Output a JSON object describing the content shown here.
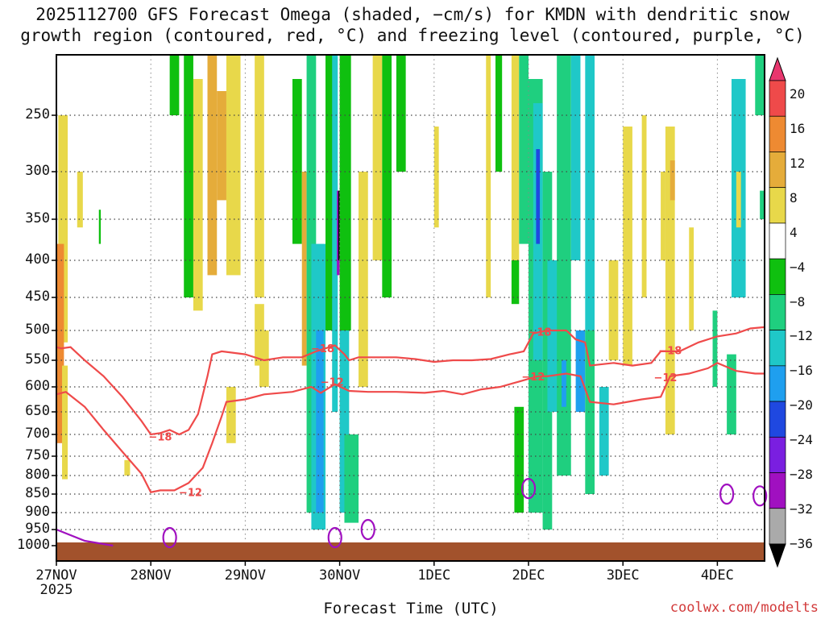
{
  "chart_data": {
    "type": "heatmap",
    "title_line1": "2025112700 GFS Forecast Omega (shaded, −cm/s) for KMDN with dendritic snow",
    "title_line2": "growth region (contoured, red, °C) and freezing level (contoured, purple, °C)",
    "xlabel": "Forecast Time (UTC)",
    "ylabel": "Pressure (hPa)",
    "credit": "coolwx.com/modelts",
    "x_ticks": [
      {
        "label": "27NOV",
        "sub": "2025",
        "day": 0
      },
      {
        "label": "28NOV",
        "sub": "",
        "day": 1
      },
      {
        "label": "29NOV",
        "sub": "",
        "day": 2
      },
      {
        "label": "30NOV",
        "sub": "",
        "day": 3
      },
      {
        "label": "1DEC",
        "sub": "",
        "day": 4
      },
      {
        "label": "2DEC",
        "sub": "",
        "day": 5
      },
      {
        "label": "3DEC",
        "sub": "",
        "day": 6
      },
      {
        "label": "4DEC",
        "sub": "",
        "day": 7
      }
    ],
    "x_range_days": [
      0,
      7.5
    ],
    "y_ticks": [
      250,
      300,
      350,
      400,
      450,
      500,
      550,
      600,
      650,
      700,
      750,
      800,
      850,
      900,
      950,
      1000
    ],
    "y_range_hpa": [
      200,
      1020
    ],
    "colorbar_levels": [
      "20",
      "16",
      "12",
      "8",
      "4",
      "−4",
      "−8",
      "−12",
      "−16",
      "−20",
      "−24",
      "−28",
      "−32",
      "−36"
    ],
    "colorbar_colors": [
      "#e8366e",
      "#ef4a4a",
      "#ee8a32",
      "#e5ac3a",
      "#e8d84a",
      "#ffffff",
      "#0fc00f",
      "#1fcf7f",
      "#1fc8c8",
      "#1f9fef",
      "#1f48e0",
      "#7a1fe0",
      "#a010c0",
      "#aaaaaa",
      "#000000"
    ],
    "series": [
      {
        "name": "-18C dendritic (red)",
        "color": "#ef4a4a",
        "points": [
          [
            0,
            528
          ],
          [
            0.05,
            530
          ],
          [
            0.15,
            528
          ],
          [
            0.3,
            550
          ],
          [
            0.5,
            580
          ],
          [
            0.7,
            620
          ],
          [
            0.9,
            670
          ],
          [
            1.0,
            700
          ],
          [
            1.1,
            697
          ],
          [
            1.2,
            690
          ],
          [
            1.3,
            700
          ],
          [
            1.4,
            690
          ],
          [
            1.5,
            655
          ],
          [
            1.6,
            580
          ],
          [
            1.65,
            540
          ],
          [
            1.75,
            535
          ],
          [
            2.0,
            540
          ],
          [
            2.2,
            550
          ],
          [
            2.4,
            545
          ],
          [
            2.6,
            545
          ],
          [
            2.75,
            535
          ],
          [
            2.85,
            530
          ],
          [
            2.95,
            525
          ],
          [
            3.05,
            540
          ],
          [
            3.1,
            550
          ],
          [
            3.2,
            545
          ],
          [
            3.4,
            545
          ],
          [
            3.6,
            545
          ],
          [
            3.8,
            548
          ],
          [
            4.0,
            553
          ],
          [
            4.2,
            550
          ],
          [
            4.4,
            550
          ],
          [
            4.6,
            548
          ],
          [
            4.8,
            540
          ],
          [
            4.95,
            535
          ],
          [
            5.0,
            520
          ],
          [
            5.05,
            505
          ],
          [
            5.2,
            500
          ],
          [
            5.4,
            500
          ],
          [
            5.5,
            515
          ],
          [
            5.6,
            520
          ],
          [
            5.65,
            560
          ],
          [
            5.9,
            555
          ],
          [
            6.1,
            560
          ],
          [
            6.3,
            555
          ],
          [
            6.4,
            535
          ],
          [
            6.6,
            535
          ],
          [
            6.8,
            520
          ],
          [
            7.0,
            510
          ],
          [
            7.2,
            505
          ],
          [
            7.35,
            497
          ],
          [
            7.5,
            495
          ]
        ],
        "labels": [
          {
            "text": "−18",
            "day": 1.1,
            "p": 705
          },
          {
            "text": "−18",
            "day": 2.82,
            "p": 530
          },
          {
            "text": "−18",
            "day": 5.12,
            "p": 502
          },
          {
            "text": "−18",
            "day": 6.5,
            "p": 533
          }
        ]
      },
      {
        "name": "-12C dendritic (red)",
        "color": "#ef4a4a",
        "points": [
          [
            0,
            615
          ],
          [
            0.1,
            610
          ],
          [
            0.3,
            640
          ],
          [
            0.5,
            690
          ],
          [
            0.7,
            740
          ],
          [
            0.9,
            795
          ],
          [
            1.0,
            845
          ],
          [
            1.1,
            840
          ],
          [
            1.25,
            840
          ],
          [
            1.4,
            820
          ],
          [
            1.55,
            780
          ],
          [
            1.65,
            720
          ],
          [
            1.75,
            660
          ],
          [
            1.8,
            630
          ],
          [
            2.0,
            625
          ],
          [
            2.2,
            615
          ],
          [
            2.5,
            610
          ],
          [
            2.7,
            600
          ],
          [
            2.8,
            612
          ],
          [
            2.95,
            595
          ],
          [
            3.1,
            608
          ],
          [
            3.3,
            610
          ],
          [
            3.6,
            610
          ],
          [
            3.9,
            612
          ],
          [
            4.1,
            608
          ],
          [
            4.3,
            615
          ],
          [
            4.5,
            605
          ],
          [
            4.7,
            600
          ],
          [
            4.9,
            590
          ],
          [
            5.0,
            585
          ],
          [
            5.1,
            580
          ],
          [
            5.2,
            580
          ],
          [
            5.4,
            575
          ],
          [
            5.55,
            580
          ],
          [
            5.65,
            630
          ],
          [
            5.9,
            635
          ],
          [
            6.2,
            625
          ],
          [
            6.4,
            620
          ],
          [
            6.5,
            580
          ],
          [
            6.7,
            575
          ],
          [
            6.9,
            565
          ],
          [
            7.0,
            555
          ],
          [
            7.2,
            570
          ],
          [
            7.4,
            575
          ],
          [
            7.5,
            575
          ]
        ],
        "labels": [
          {
            "text": "−12",
            "day": 1.42,
            "p": 845
          },
          {
            "text": "−12",
            "day": 2.92,
            "p": 590
          },
          {
            "text": "−12",
            "day": 5.05,
            "p": 580
          },
          {
            "text": "−12",
            "day": 6.45,
            "p": 582
          }
        ]
      },
      {
        "name": "0C freezing level (purple)",
        "color": "#a010c0",
        "points": [
          [
            0,
            950
          ],
          [
            0.3,
            985
          ],
          [
            0.6,
            1000
          ]
        ],
        "labels": []
      }
    ],
    "omega_cells": [
      {
        "d0": 0.02,
        "d1": 0.12,
        "p0": 250,
        "p1": 520,
        "v": 6
      },
      {
        "d0": 0.0,
        "d1": 0.08,
        "p0": 380,
        "p1": 720,
        "v": 12
      },
      {
        "d0": 0.06,
        "d1": 0.12,
        "p0": 560,
        "p1": 810,
        "v": 5
      },
      {
        "d0": 0.22,
        "d1": 0.28,
        "p0": 300,
        "p1": 360,
        "v": 5
      },
      {
        "d0": 0.45,
        "d1": 0.47,
        "p0": 340,
        "p1": 380,
        "v": -6
      },
      {
        "d0": 0.72,
        "d1": 0.78,
        "p0": 760,
        "p1": 800,
        "v": 5
      },
      {
        "d0": 1.2,
        "d1": 1.3,
        "p0": 200,
        "p1": 250,
        "v": -6
      },
      {
        "d0": 1.35,
        "d1": 1.45,
        "p0": 200,
        "p1": 450,
        "v": -6
      },
      {
        "d0": 1.45,
        "d1": 1.55,
        "p0": 220,
        "p1": 470,
        "v": 6
      },
      {
        "d0": 1.6,
        "d1": 1.7,
        "p0": 200,
        "p1": 420,
        "v": 8
      },
      {
        "d0": 1.7,
        "d1": 1.8,
        "p0": 230,
        "p1": 330,
        "v": 10
      },
      {
        "d0": 1.8,
        "d1": 1.95,
        "p0": 200,
        "p1": 420,
        "v": 5
      },
      {
        "d0": 2.1,
        "d1": 2.2,
        "p0": 200,
        "p1": 450,
        "v": 6
      },
      {
        "d0": 2.1,
        "d1": 2.2,
        "p0": 460,
        "p1": 560,
        "v": 5
      },
      {
        "d0": 1.8,
        "d1": 1.9,
        "p0": 600,
        "p1": 720,
        "v": 4
      },
      {
        "d0": 2.15,
        "d1": 2.25,
        "p0": 500,
        "p1": 600,
        "v": 5
      },
      {
        "d0": 2.5,
        "d1": 2.6,
        "p0": 220,
        "p1": 380,
        "v": -6
      },
      {
        "d0": 2.6,
        "d1": 2.65,
        "p0": 300,
        "p1": 560,
        "v": 8
      },
      {
        "d0": 2.65,
        "d1": 2.75,
        "p0": 200,
        "p1": 900,
        "v": -8
      },
      {
        "d0": 2.7,
        "d1": 2.85,
        "p0": 380,
        "p1": 950,
        "v": -12
      },
      {
        "d0": 2.75,
        "d1": 2.83,
        "p0": 500,
        "p1": 900,
        "v": -16
      },
      {
        "d0": 2.85,
        "d1": 2.95,
        "p0": 200,
        "p1": 500,
        "v": -6
      },
      {
        "d0": 2.92,
        "d1": 2.98,
        "p0": 200,
        "p1": 650,
        "v": -12
      },
      {
        "d0": 2.97,
        "d1": 3.0,
        "p0": 320,
        "p1": 420,
        "v": -28
      },
      {
        "d0": 2.985,
        "d1": 3.0,
        "p0": 320,
        "p1": 400,
        "v": -36
      },
      {
        "d0": 3.0,
        "d1": 3.12,
        "p0": 200,
        "p1": 500,
        "v": -6
      },
      {
        "d0": 3.0,
        "d1": 3.1,
        "p0": 500,
        "p1": 900,
        "v": -12
      },
      {
        "d0": 3.05,
        "d1": 3.2,
        "p0": 700,
        "p1": 930,
        "v": -8
      },
      {
        "d0": 3.2,
        "d1": 3.3,
        "p0": 300,
        "p1": 600,
        "v": 5
      },
      {
        "d0": 3.35,
        "d1": 3.45,
        "p0": 200,
        "p1": 400,
        "v": 6
      },
      {
        "d0": 3.45,
        "d1": 3.55,
        "p0": 200,
        "p1": 450,
        "v": -6
      },
      {
        "d0": 3.6,
        "d1": 3.7,
        "p0": 200,
        "p1": 300,
        "v": -6
      },
      {
        "d0": 4.0,
        "d1": 4.05,
        "p0": 260,
        "p1": 360,
        "v": 5
      },
      {
        "d0": 4.55,
        "d1": 4.6,
        "p0": 200,
        "p1": 450,
        "v": 5
      },
      {
        "d0": 4.65,
        "d1": 4.72,
        "p0": 200,
        "p1": 300,
        "v": -6
      },
      {
        "d0": 4.82,
        "d1": 4.9,
        "p0": 200,
        "p1": 400,
        "v": 5
      },
      {
        "d0": 4.82,
        "d1": 4.9,
        "p0": 400,
        "p1": 460,
        "v": -6
      },
      {
        "d0": 4.85,
        "d1": 4.95,
        "p0": 640,
        "p1": 900,
        "v": -6
      },
      {
        "d0": 4.9,
        "d1": 5.0,
        "p0": 200,
        "p1": 380,
        "v": -8
      },
      {
        "d0": 5.0,
        "d1": 5.15,
        "p0": 220,
        "p1": 900,
        "v": -8
      },
      {
        "d0": 5.05,
        "d1": 5.15,
        "p0": 240,
        "p1": 550,
        "v": -12
      },
      {
        "d0": 5.08,
        "d1": 5.12,
        "p0": 280,
        "p1": 380,
        "v": -20
      },
      {
        "d0": 5.15,
        "d1": 5.25,
        "p0": 300,
        "p1": 950,
        "v": -8
      },
      {
        "d0": 5.2,
        "d1": 5.35,
        "p0": 400,
        "p1": 650,
        "v": -12
      },
      {
        "d0": 5.3,
        "d1": 5.45,
        "p0": 200,
        "p1": 800,
        "v": -8
      },
      {
        "d0": 5.35,
        "d1": 5.4,
        "p0": 550,
        "p1": 640,
        "v": -16
      },
      {
        "d0": 5.45,
        "d1": 5.55,
        "p0": 200,
        "p1": 400,
        "v": -12
      },
      {
        "d0": 5.5,
        "d1": 5.6,
        "p0": 500,
        "p1": 650,
        "v": -16
      },
      {
        "d0": 5.6,
        "d1": 5.7,
        "p0": 200,
        "p1": 500,
        "v": -12
      },
      {
        "d0": 5.6,
        "d1": 5.7,
        "p0": 500,
        "p1": 850,
        "v": -8
      },
      {
        "d0": 5.75,
        "d1": 5.85,
        "p0": 600,
        "p1": 800,
        "v": -12
      },
      {
        "d0": 5.85,
        "d1": 5.95,
        "p0": 400,
        "p1": 550,
        "v": 5
      },
      {
        "d0": 6.0,
        "d1": 6.1,
        "p0": 260,
        "p1": 560,
        "v": 5
      },
      {
        "d0": 6.2,
        "d1": 6.25,
        "p0": 250,
        "p1": 450,
        "v": 5
      },
      {
        "d0": 6.4,
        "d1": 6.45,
        "p0": 300,
        "p1": 400,
        "v": 5
      },
      {
        "d0": 6.45,
        "d1": 6.55,
        "p0": 260,
        "p1": 700,
        "v": 5
      },
      {
        "d0": 6.5,
        "d1": 6.55,
        "p0": 290,
        "p1": 330,
        "v": 10
      },
      {
        "d0": 6.7,
        "d1": 6.75,
        "p0": 360,
        "p1": 500,
        "v": 5
      },
      {
        "d0": 6.95,
        "d1": 7.0,
        "p0": 470,
        "p1": 600,
        "v": -8
      },
      {
        "d0": 7.1,
        "d1": 7.2,
        "p0": 540,
        "p1": 700,
        "v": -8
      },
      {
        "d0": 7.15,
        "d1": 7.3,
        "p0": 220,
        "p1": 450,
        "v": -12
      },
      {
        "d0": 7.2,
        "d1": 7.25,
        "p0": 300,
        "p1": 360,
        "v": 5
      },
      {
        "d0": 7.4,
        "d1": 7.5,
        "p0": 200,
        "p1": 250,
        "v": -8
      },
      {
        "d0": 7.45,
        "d1": 7.5,
        "p0": 320,
        "p1": 350,
        "v": -8
      }
    ],
    "freezing_blobs": [
      {
        "d": 1.2,
        "p": 975
      },
      {
        "d": 2.95,
        "p": 975
      },
      {
        "d": 3.3,
        "p": 950
      },
      {
        "d": 5.0,
        "p": 835
      },
      {
        "d": 7.1,
        "p": 850
      },
      {
        "d": 7.45,
        "p": 855
      }
    ]
  }
}
